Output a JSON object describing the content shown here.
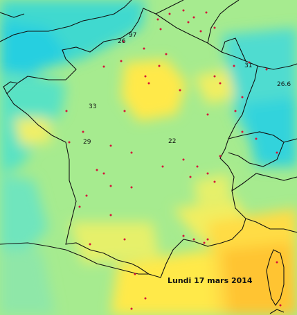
{
  "map": {
    "date_label": "Lundi 17 mars 2014",
    "value_labels": [
      {
        "id": "v97",
        "text": "97"
      },
      {
        "id": "v26",
        "text": "26"
      },
      {
        "id": "v33",
        "text": "33"
      },
      {
        "id": "v29",
        "text": "29"
      },
      {
        "id": "v22",
        "text": "22"
      },
      {
        "id": "v31",
        "text": "31"
      },
      {
        "id": "v266",
        "text": "26.6"
      }
    ],
    "colors": {
      "cyan": "#2fd7d9",
      "aqua": "#57e3c6",
      "green": "#a6eb8f",
      "light_yellow": "#e6f06a",
      "yellow": "#ffe94a",
      "orange": "#ffc433",
      "station": "#d4143a",
      "border": "#111111"
    }
  }
}
